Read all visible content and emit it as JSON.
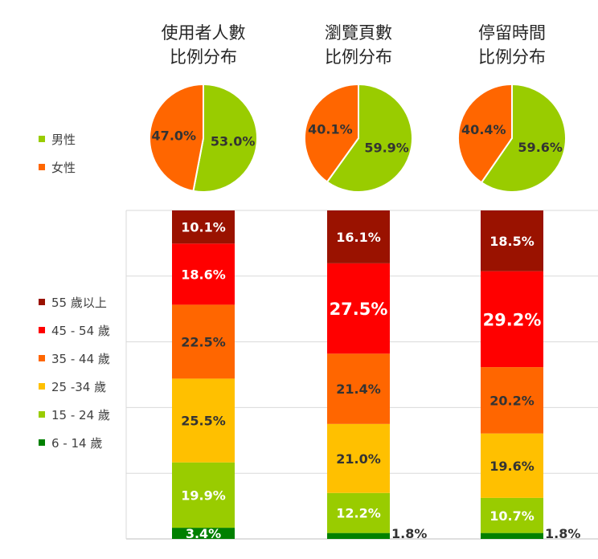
{
  "chart_data": {
    "type": "pie",
    "columns": [
      {
        "title_line1": "使用者人數",
        "title_line2": "比例分布"
      },
      {
        "title_line1": "瀏覽頁數",
        "title_line2": "比例分布"
      },
      {
        "title_line1": "停留時間",
        "title_line2": "比例分布"
      }
    ],
    "gender_legend": [
      {
        "label": "男性",
        "color": "#99cc00"
      },
      {
        "label": "女性",
        "color": "#ff6600"
      }
    ],
    "gender_pies": [
      {
        "male": 53.0,
        "female": 47.0,
        "male_label": "53.0%",
        "female_label": "47.0%"
      },
      {
        "male": 59.9,
        "female": 40.1,
        "male_label": "59.9%",
        "female_label": "40.1%"
      },
      {
        "male": 59.6,
        "female": 40.4,
        "male_label": "59.6%",
        "female_label": "40.4%"
      }
    ],
    "age_legend": [
      {
        "label": "55 歲以上",
        "color": "#9a1200"
      },
      {
        "label": "45 - 54 歲",
        "color": "#ff0000"
      },
      {
        "label": "35 - 44 歲",
        "color": "#ff6600"
      },
      {
        "label": "25 -34 歲",
        "color": "#ffc000"
      },
      {
        "label": "15 - 24 歲",
        "color": "#99cc00"
      },
      {
        "label": "6 - 14 歲",
        "color": "#008000"
      }
    ],
    "age_stacks": [
      {
        "values": [
          3.4,
          19.9,
          25.5,
          22.5,
          18.6,
          10.1
        ],
        "labels": [
          "3.4%",
          "19.9%",
          "25.5%",
          "22.5%",
          "18.6%",
          "10.1%"
        ]
      },
      {
        "values": [
          1.8,
          12.2,
          21.0,
          21.4,
          27.5,
          16.1
        ],
        "labels": [
          "1.8%",
          "12.2%",
          "21.0%",
          "21.4%",
          "27.5%",
          "16.1%"
        ]
      },
      {
        "values": [
          1.8,
          10.7,
          19.6,
          20.2,
          29.2,
          18.5
        ],
        "labels": [
          "1.8%",
          "10.7%",
          "19.6%",
          "20.2%",
          "29.2%",
          "18.5%"
        ]
      }
    ],
    "stack_order_bottom_to_top": [
      "6 - 14 歲",
      "15 - 24 歲",
      "25 -34 歲",
      "35 - 44 歲",
      "45 - 54 歲",
      "55 歲以上"
    ],
    "ylim": [
      0,
      100
    ],
    "grid": true
  }
}
